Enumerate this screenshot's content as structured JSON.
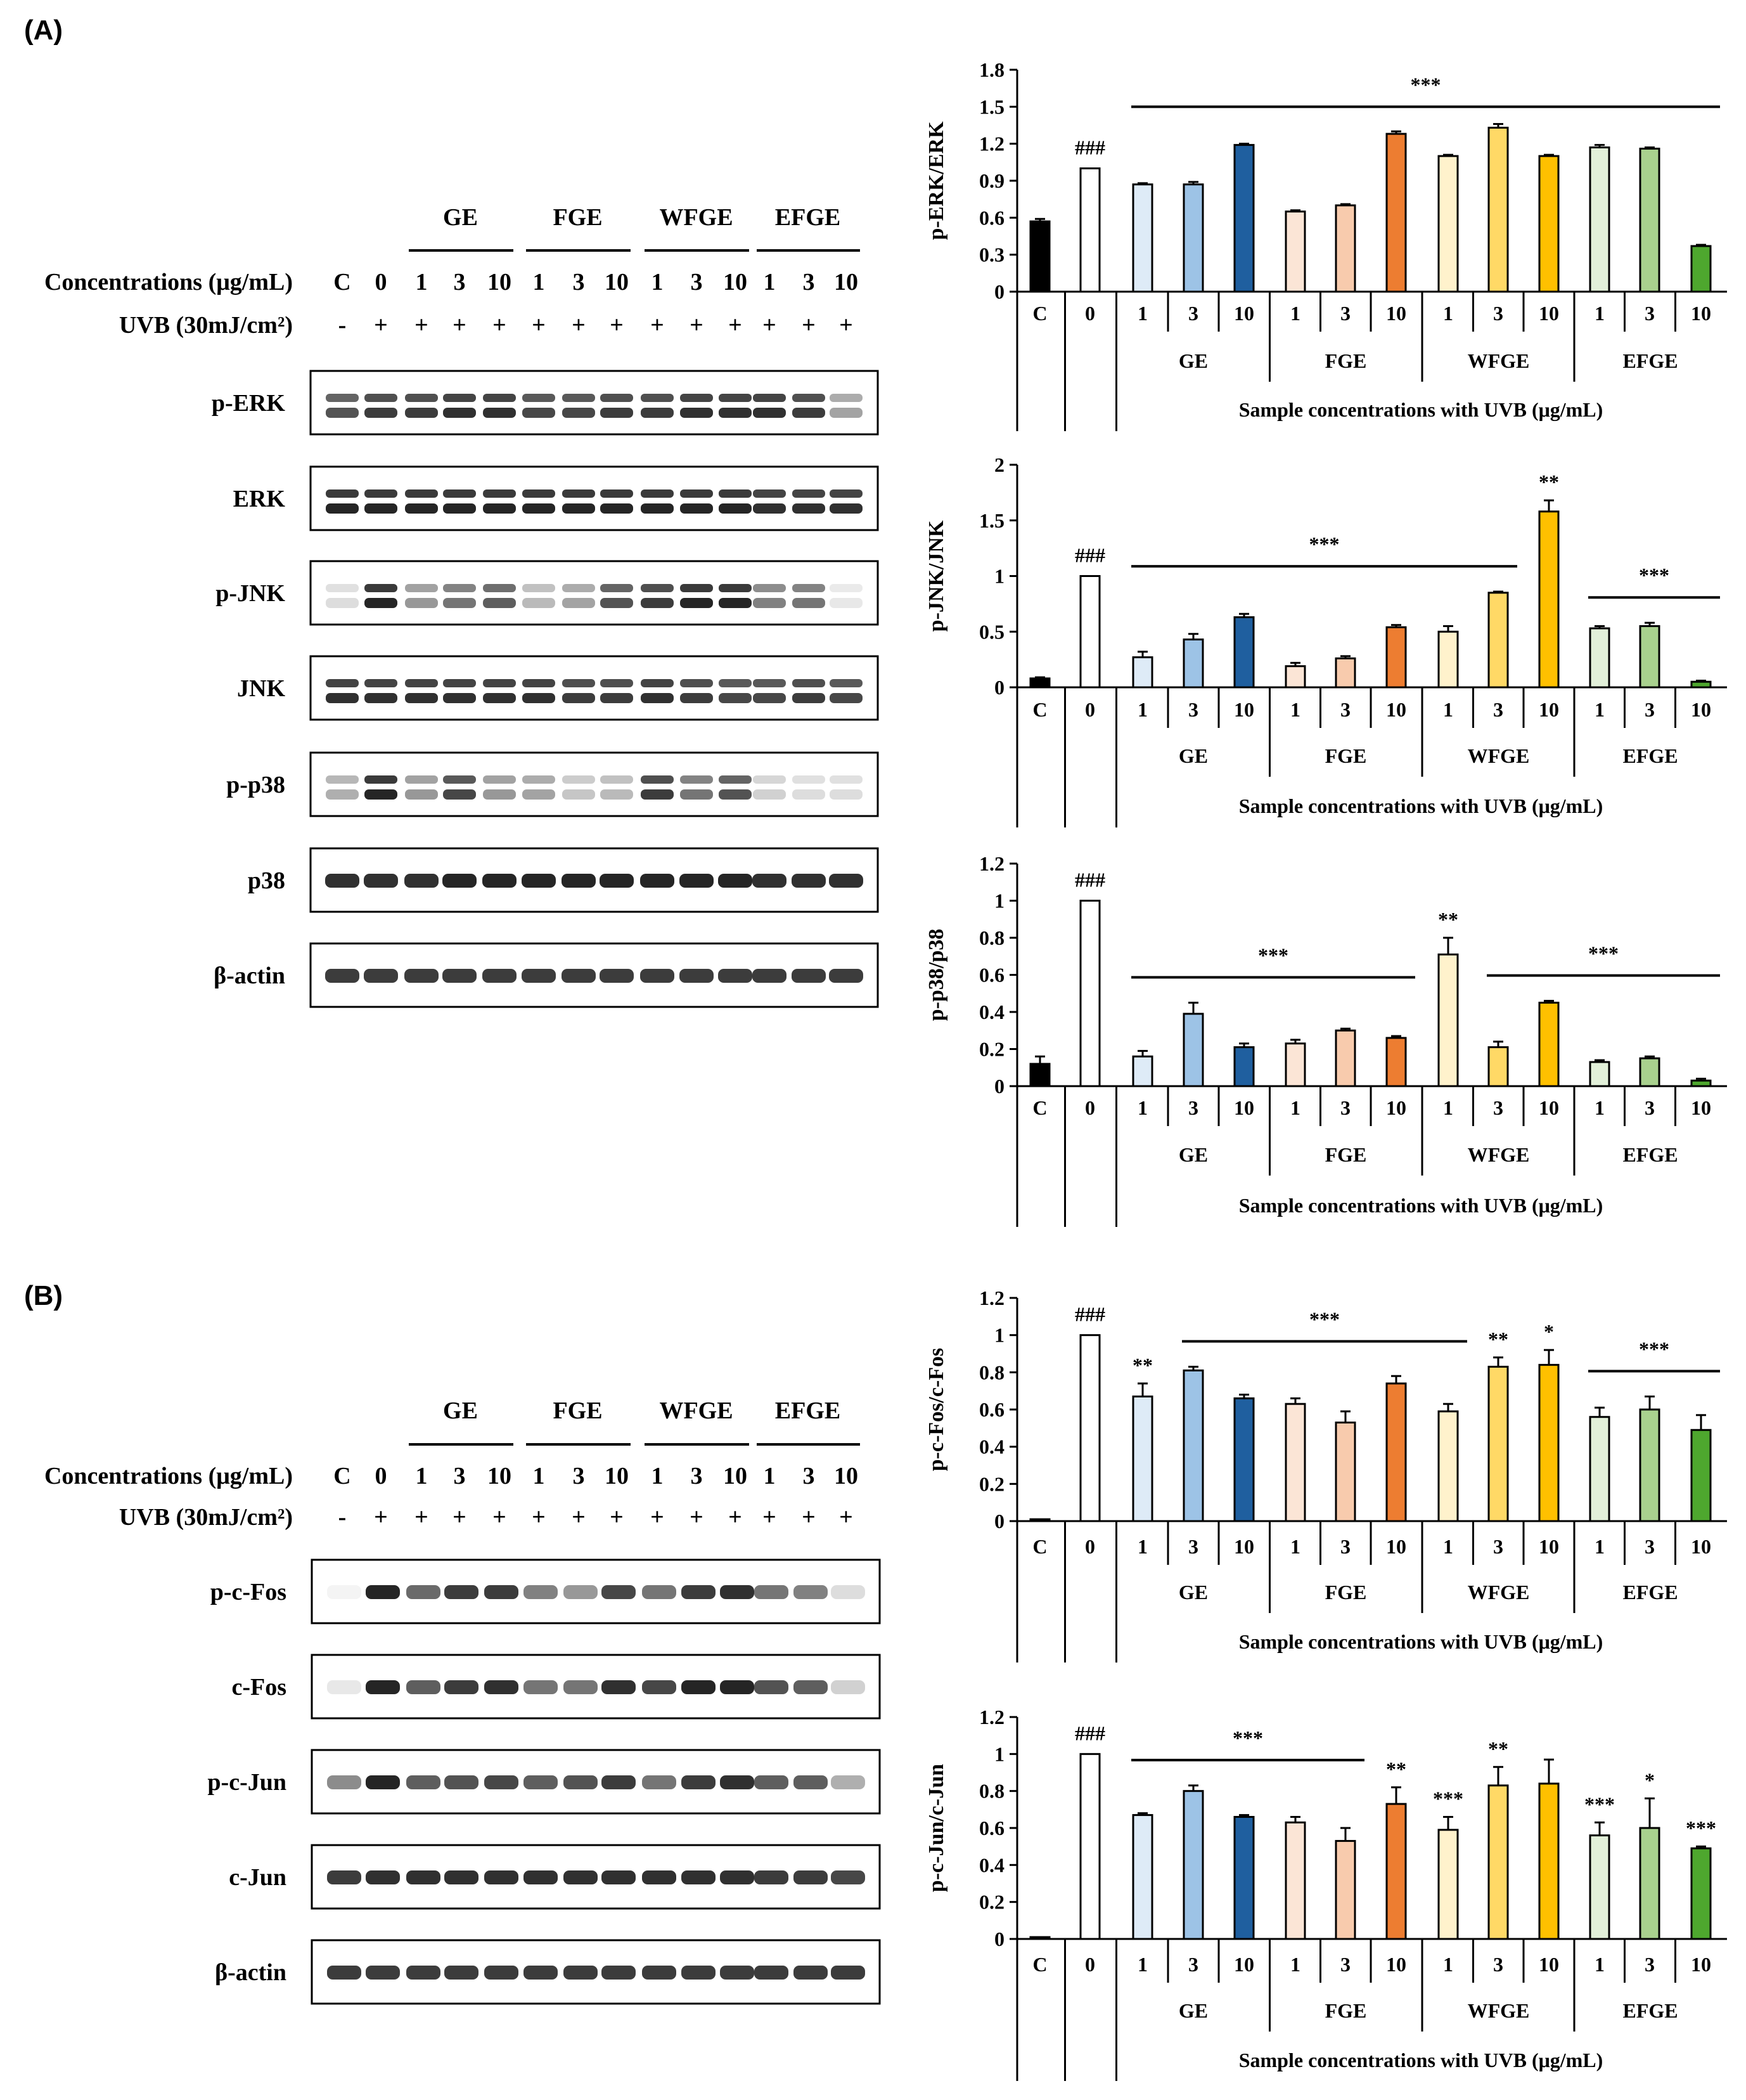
{
  "panels": [
    {
      "label": "(A)",
      "blot": {
        "groups": [
          "GE",
          "FGE",
          "WFGE",
          "EFGE"
        ],
        "concentration_label": "Concentrations (μg/mL)",
        "concentrations": [
          "C",
          "0",
          "1",
          "3",
          "10",
          "1",
          "3",
          "10",
          "1",
          "3",
          "10",
          "1",
          "3",
          "10"
        ],
        "uvb_label": "UVB (30mJ/cm²)",
        "uvb": [
          "-",
          "+",
          "+",
          "+",
          "+",
          "+",
          "+",
          "+",
          "+",
          "+",
          "+",
          "+",
          "+",
          "+"
        ],
        "proteins": [
          "p-ERK",
          "ERK",
          "p-JNK",
          "JNK",
          "p-p38",
          "p38",
          "β-actin"
        ],
        "intensities": [
          [
            0.75,
            0.85,
            0.85,
            0.9,
            0.9,
            0.8,
            0.8,
            0.85,
            0.85,
            0.9,
            0.9,
            0.9,
            0.85,
            0.4
          ],
          [
            0.95,
            0.95,
            0.95,
            0.95,
            0.95,
            0.95,
            0.95,
            0.95,
            0.95,
            0.95,
            0.95,
            0.9,
            0.9,
            0.9
          ],
          [
            0.15,
            0.95,
            0.45,
            0.6,
            0.7,
            0.3,
            0.4,
            0.75,
            0.85,
            0.95,
            0.95,
            0.55,
            0.6,
            0.1
          ],
          [
            0.9,
            0.9,
            0.9,
            0.9,
            0.9,
            0.9,
            0.85,
            0.85,
            0.9,
            0.85,
            0.8,
            0.8,
            0.85,
            0.8
          ],
          [
            0.35,
            0.95,
            0.45,
            0.8,
            0.45,
            0.4,
            0.25,
            0.3,
            0.85,
            0.6,
            0.75,
            0.2,
            0.15,
            0.15
          ],
          [
            0.9,
            0.9,
            0.9,
            0.95,
            0.95,
            0.95,
            0.95,
            0.95,
            0.95,
            0.95,
            0.95,
            0.9,
            0.9,
            0.9
          ],
          [
            0.85,
            0.85,
            0.85,
            0.85,
            0.85,
            0.85,
            0.85,
            0.85,
            0.85,
            0.85,
            0.85,
            0.85,
            0.85,
            0.85
          ]
        ]
      }
    },
    {
      "label": "(B)",
      "blot": {
        "groups": [
          "GE",
          "FGE",
          "WFGE",
          "EFGE"
        ],
        "concentration_label": "Concentrations (μg/mL)",
        "concentrations": [
          "C",
          "0",
          "1",
          "3",
          "10",
          "1",
          "3",
          "10",
          "1",
          "3",
          "10",
          "1",
          "3",
          "10"
        ],
        "uvb_label": "UVB (30mJ/cm²)",
        "uvb": [
          "-",
          "+",
          "+",
          "+",
          "+",
          "+",
          "+",
          "+",
          "+",
          "+",
          "+",
          "+",
          "+",
          "+"
        ],
        "proteins": [
          "p-c-Fos",
          "c-Fos",
          "p-c-Jun",
          "c-Jun",
          "β-actin"
        ],
        "intensities": [
          [
            0.05,
            0.95,
            0.65,
            0.85,
            0.85,
            0.55,
            0.45,
            0.8,
            0.6,
            0.85,
            0.9,
            0.6,
            0.55,
            0.15
          ],
          [
            0.1,
            0.95,
            0.7,
            0.85,
            0.9,
            0.6,
            0.6,
            0.9,
            0.8,
            0.95,
            0.95,
            0.75,
            0.7,
            0.2
          ],
          [
            0.5,
            0.95,
            0.7,
            0.75,
            0.8,
            0.7,
            0.75,
            0.85,
            0.6,
            0.85,
            0.9,
            0.7,
            0.7,
            0.35
          ],
          [
            0.85,
            0.9,
            0.9,
            0.9,
            0.9,
            0.9,
            0.9,
            0.9,
            0.9,
            0.9,
            0.9,
            0.85,
            0.85,
            0.8
          ],
          [
            0.85,
            0.85,
            0.85,
            0.85,
            0.85,
            0.85,
            0.85,
            0.85,
            0.85,
            0.85,
            0.85,
            0.85,
            0.85,
            0.85
          ]
        ]
      }
    }
  ],
  "shared_axis": {
    "categories": [
      "C",
      "0",
      "1",
      "3",
      "10",
      "1",
      "3",
      "10",
      "1",
      "3",
      "10",
      "1",
      "3",
      "10"
    ],
    "groups": [
      "GE",
      "FGE",
      "WFGE",
      "EFGE"
    ],
    "xlabel": "Sample concentrations with UVB (μg/mL)",
    "bar_colors": [
      "#000000",
      "#ffffff",
      "#deebf7",
      "#9dc3e6",
      "#1f5f9f",
      "#fbe5d6",
      "#f8cbad",
      "#ed7d31",
      "#fff2cc",
      "#ffd966",
      "#ffc000",
      "#e2f0d9",
      "#a9d18e",
      "#4ea72e"
    ]
  },
  "chart_data": [
    {
      "type": "bar",
      "title": "p-ERK/ERK",
      "ylabel": "p-ERK/ERK",
      "ylim": [
        0,
        1.8
      ],
      "yticks": [
        "0",
        "0.3",
        "0.6",
        "0.9",
        "1.2",
        "1.5",
        "1.8"
      ],
      "yticks_values": [
        0,
        0.3,
        0.6,
        0.9,
        1.2,
        1.5,
        1.8
      ],
      "values": [
        0.57,
        1.0,
        0.87,
        0.87,
        1.19,
        0.65,
        0.7,
        1.28,
        1.1,
        1.33,
        1.1,
        1.17,
        1.16,
        0.37
      ],
      "errors": [
        0.02,
        0.0,
        0.01,
        0.02,
        0.01,
        0.01,
        0.01,
        0.02,
        0.01,
        0.03,
        0.01,
        0.02,
        0.01,
        0.01
      ],
      "annotations": [
        {
          "text": "###",
          "bar": 1
        },
        {
          "text": "***",
          "span": [
            2,
            13
          ]
        }
      ]
    },
    {
      "type": "bar",
      "title": "p-JNK/JNK",
      "ylabel": "p-JNK/JNK",
      "ylim": [
        0,
        2
      ],
      "yticks": [
        "0",
        "0.5",
        "1",
        "1.5",
        "2"
      ],
      "yticks_values": [
        0,
        0.5,
        1,
        1.5,
        2
      ],
      "values": [
        0.08,
        1.0,
        0.27,
        0.43,
        0.63,
        0.19,
        0.26,
        0.54,
        0.5,
        0.85,
        1.58,
        0.53,
        0.55,
        0.05
      ],
      "errors": [
        0.01,
        0.0,
        0.05,
        0.05,
        0.03,
        0.03,
        0.02,
        0.02,
        0.05,
        0.01,
        0.1,
        0.02,
        0.03,
        0.01
      ],
      "annotations": [
        {
          "text": "###",
          "bar": 1
        },
        {
          "text": "***",
          "span": [
            2,
            9
          ]
        },
        {
          "text": "**",
          "bar": 10
        },
        {
          "text": "***",
          "span": [
            11,
            13
          ]
        }
      ]
    },
    {
      "type": "bar",
      "title": "p-p38/p38",
      "ylabel": "p-p38/p38",
      "ylim": [
        0,
        1.2
      ],
      "yticks": [
        "0",
        "0.2",
        "0.4",
        "0.6",
        "0.8",
        "1",
        "1.2"
      ],
      "yticks_values": [
        0,
        0.2,
        0.4,
        0.6,
        0.8,
        1,
        1.2
      ],
      "values": [
        0.12,
        1.0,
        0.16,
        0.39,
        0.21,
        0.23,
        0.3,
        0.26,
        0.71,
        0.21,
        0.45,
        0.13,
        0.15,
        0.03
      ],
      "errors": [
        0.04,
        0.0,
        0.03,
        0.06,
        0.02,
        0.02,
        0.01,
        0.01,
        0.09,
        0.03,
        0.01,
        0.01,
        0.01,
        0.01
      ],
      "annotations": [
        {
          "text": "###",
          "bar": 1
        },
        {
          "text": "***",
          "span": [
            2,
            7
          ]
        },
        {
          "text": "**",
          "bar": 8
        },
        {
          "text": "***",
          "span": [
            9,
            13
          ]
        }
      ]
    },
    {
      "type": "bar",
      "title": "p-c-Fos/c-Fos",
      "ylabel": "p-c-Fos/c-Fos",
      "ylim": [
        0,
        1.2
      ],
      "yticks": [
        "0",
        "0.2",
        "0.4",
        "0.6",
        "0.8",
        "1",
        "1.2"
      ],
      "yticks_values": [
        0,
        0.2,
        0.4,
        0.6,
        0.8,
        1,
        1.2
      ],
      "values": [
        0.01,
        1.0,
        0.67,
        0.81,
        0.66,
        0.63,
        0.53,
        0.74,
        0.59,
        0.83,
        0.84,
        0.56,
        0.6,
        0.49
      ],
      "errors": [
        0.0,
        0.0,
        0.07,
        0.02,
        0.02,
        0.03,
        0.06,
        0.04,
        0.04,
        0.05,
        0.08,
        0.05,
        0.07,
        0.08
      ],
      "annotations": [
        {
          "text": "###",
          "bar": 1
        },
        {
          "text": "**",
          "bar": 2
        },
        {
          "text": "***",
          "span": [
            3,
            8
          ]
        },
        {
          "text": "**",
          "bar": 9
        },
        {
          "text": "*",
          "bar": 10
        },
        {
          "text": "***",
          "span": [
            11,
            13
          ]
        }
      ]
    },
    {
      "type": "bar",
      "title": "p-c-Jun/c-Jun",
      "ylabel": "p-c-Jun/c-Jun",
      "ylim": [
        0,
        1.2
      ],
      "yticks": [
        "0",
        "0.2",
        "0.4",
        "0.6",
        "0.8",
        "1",
        "1.2"
      ],
      "yticks_values": [
        0,
        0.2,
        0.4,
        0.6,
        0.8,
        1,
        1.2
      ],
      "values": [
        0.01,
        1.0,
        0.67,
        0.8,
        0.66,
        0.63,
        0.53,
        0.73,
        0.59,
        0.83,
        0.84,
        0.56,
        0.6,
        0.49
      ],
      "errors": [
        0.0,
        0.0,
        0.01,
        0.03,
        0.01,
        0.03,
        0.07,
        0.09,
        0.07,
        0.1,
        0.13,
        0.07,
        0.16,
        0.01
      ],
      "annotations": [
        {
          "text": "###",
          "bar": 1
        },
        {
          "text": "***",
          "span": [
            2,
            6
          ]
        },
        {
          "text": "**",
          "bar": 7
        },
        {
          "text": "***",
          "bar": 8
        },
        {
          "text": "**",
          "bar": 9
        },
        {
          "text": "***",
          "bar": 11
        },
        {
          "text": "*",
          "bar": 12
        },
        {
          "text": "***",
          "bar": 13
        }
      ]
    }
  ]
}
